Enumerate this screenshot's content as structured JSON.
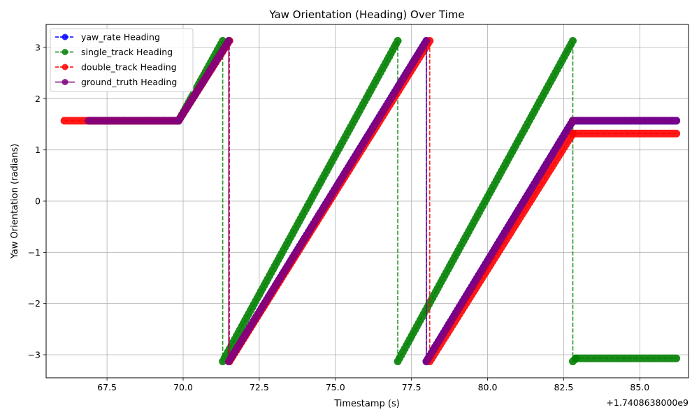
{
  "chart_data": {
    "type": "line",
    "title": "Yaw Orientation (Heading) Over Time",
    "xlabel": "Timestamp (s)",
    "ylabel": "Yaw Orientation (radians)",
    "x_offset_label": "+1.7408638000e9",
    "xlim": [
      65.5,
      86.6
    ],
    "ylim": [
      -3.45,
      3.45
    ],
    "x_ticks": [
      67.5,
      70.0,
      72.5,
      75.0,
      77.5,
      80.0,
      82.5,
      85.0
    ],
    "x_tick_labels": [
      "67.5",
      "70.0",
      "72.5",
      "75.0",
      "77.5",
      "80.0",
      "82.5",
      "85.0"
    ],
    "y_ticks": [
      -3,
      -2,
      -1,
      0,
      1,
      2,
      3
    ],
    "y_tick_labels": [
      "−3",
      "−2",
      "−1",
      "0",
      "1",
      "2",
      "3"
    ],
    "grid": true,
    "legend_position": "upper-left",
    "series": [
      {
        "name": "yaw_rate Heading",
        "color": "#0000ff",
        "line_style": "dashed",
        "marker": "circle",
        "points": [
          [
            66.9,
            1.57
          ],
          [
            69.85,
            1.57
          ],
          [
            71.5,
            3.13
          ],
          [
            71.5,
            -3.13
          ],
          [
            77.99,
            3.13
          ],
          [
            77.99,
            -3.13
          ],
          [
            82.8,
            1.57
          ],
          [
            86.2,
            1.57
          ]
        ]
      },
      {
        "name": "single_track Heading",
        "color": "#008000",
        "line_style": "dashed",
        "marker": "circle",
        "points": [
          [
            66.9,
            1.57
          ],
          [
            69.85,
            1.57
          ],
          [
            71.3,
            3.13
          ],
          [
            71.3,
            -3.13
          ],
          [
            77.05,
            3.13
          ],
          [
            77.05,
            -3.13
          ],
          [
            82.8,
            3.13
          ],
          [
            82.8,
            -3.13
          ],
          [
            82.9,
            -3.07
          ],
          [
            86.2,
            -3.07
          ]
        ]
      },
      {
        "name": "double_track Heading",
        "color": "#ff0000",
        "line_style": "dashed",
        "marker": "circle",
        "points": [
          [
            66.1,
            1.57
          ],
          [
            69.85,
            1.57
          ],
          [
            71.52,
            3.13
          ],
          [
            71.52,
            -3.13
          ],
          [
            78.1,
            3.13
          ],
          [
            78.1,
            -3.13
          ],
          [
            82.8,
            1.32
          ],
          [
            86.2,
            1.32
          ]
        ]
      },
      {
        "name": "ground_truth Heading",
        "color": "#800080",
        "line_style": "solid",
        "marker": "circle",
        "points": [
          [
            66.9,
            1.57
          ],
          [
            69.85,
            1.57
          ],
          [
            71.5,
            3.13
          ],
          [
            71.5,
            -3.13
          ],
          [
            77.99,
            3.13
          ],
          [
            77.99,
            -3.13
          ],
          [
            82.8,
            1.57
          ],
          [
            86.2,
            1.57
          ]
        ]
      }
    ]
  }
}
